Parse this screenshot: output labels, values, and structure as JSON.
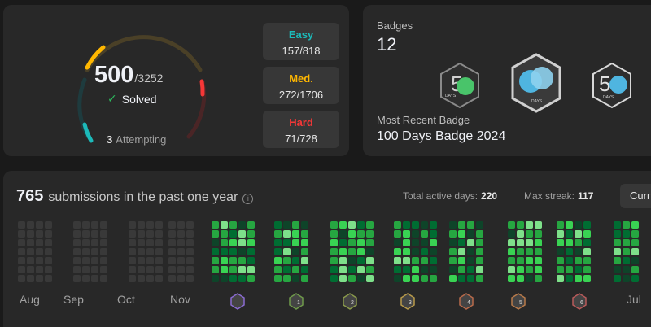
{
  "progress": {
    "solved": "500",
    "total": "/3252",
    "solved_label": "Solved",
    "attempting_count": "3",
    "attempting_label": "Attempting",
    "easy": {
      "label": "Easy",
      "value": "157/818",
      "color": "#1cbaba"
    },
    "medium": {
      "label": "Med.",
      "value": "272/1706",
      "color": "#ffb700"
    },
    "hard": {
      "label": "Hard",
      "value": "71/728",
      "color": "#f63737"
    }
  },
  "badges": {
    "title": "Badges",
    "count": "12",
    "items": [
      {
        "icon": "50-days-badge-icon",
        "text": "DAYS"
      },
      {
        "icon": "100-days-badge-icon",
        "text": "DAYS"
      },
      {
        "icon": "50-days-badge-2024-icon",
        "text": "DAYS"
      }
    ],
    "recent_label": "Most Recent Badge",
    "recent_name": "100 Days Badge 2024"
  },
  "calendar": {
    "count": "765",
    "text": "submissions in the past one year",
    "active_label": "Total active days:",
    "active_value": "220",
    "streak_label": "Max streak:",
    "streak_value": "117",
    "current_button": "Curr",
    "months": [
      "Aug",
      "Sep",
      "Oct",
      "Nov",
      "Jul"
    ],
    "monthly_badges": [
      "",
      "1",
      "2",
      "3",
      "4",
      "5",
      "6"
    ]
  }
}
